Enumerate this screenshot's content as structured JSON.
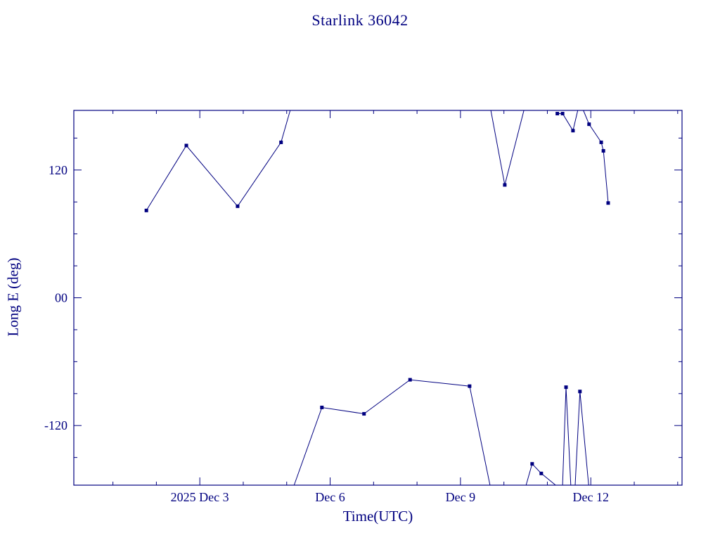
{
  "page": {
    "background": "#ffffff",
    "accent_color": "#000080"
  },
  "chart_data": {
    "type": "line",
    "title": "Starlink 36042",
    "xlabel": "Time(UTC)",
    "ylabel": "Long E (deg)",
    "line_color": "#000080",
    "marker": "filled-square",
    "marker_size": 5,
    "grid": false,
    "legend": "none",
    "x_axis": {
      "unit": "day of December 2025",
      "min": 0.1,
      "max": 14.1,
      "minor_tick_step": 1,
      "major_ticks": [
        {
          "value": 3,
          "label": "2025 Dec 3"
        },
        {
          "value": 6,
          "label": "Dec 6"
        },
        {
          "value": 9,
          "label": "Dec 9"
        },
        {
          "value": 12,
          "label": "Dec 12"
        }
      ]
    },
    "y_axis": {
      "unit": "degrees East longitude",
      "min": -176,
      "max": 176,
      "minor_tick_step": 30,
      "major_ticks": [
        {
          "value": 120,
          "label": "120"
        },
        {
          "value": 0,
          "label": "00"
        },
        {
          "value": -120,
          "label": "-120"
        }
      ]
    },
    "segments": [
      {
        "name": "upper-left",
        "line": [
          [
            1.77,
            82
          ],
          [
            2.69,
            143
          ],
          [
            3.87,
            86
          ],
          [
            4.87,
            146
          ],
          [
            5.08,
            176
          ]
        ],
        "markers": [
          [
            1.77,
            82
          ],
          [
            2.69,
            143
          ],
          [
            3.87,
            86
          ],
          [
            4.87,
            146
          ]
        ]
      },
      {
        "name": "upper-middle-dip",
        "line": [
          [
            9.7,
            176
          ],
          [
            10.02,
            106
          ],
          [
            10.46,
            176
          ]
        ],
        "markers": [
          [
            10.02,
            106
          ]
        ]
      },
      {
        "name": "upper-right-a",
        "line": [
          [
            11.23,
            173
          ],
          [
            11.35,
            173
          ],
          [
            11.59,
            157
          ],
          [
            11.7,
            176
          ]
        ],
        "markers": [
          [
            11.23,
            173
          ],
          [
            11.35,
            173
          ],
          [
            11.59,
            157
          ]
        ]
      },
      {
        "name": "upper-right-b",
        "line": [
          [
            11.83,
            176
          ],
          [
            11.96,
            163
          ],
          [
            12.24,
            146
          ],
          [
            12.29,
            138
          ],
          [
            12.4,
            89
          ]
        ],
        "markers": [
          [
            11.96,
            163
          ],
          [
            12.24,
            146
          ],
          [
            12.29,
            138
          ],
          [
            12.4,
            89
          ]
        ]
      },
      {
        "name": "lower-left-arc",
        "line": [
          [
            5.17,
            -176
          ],
          [
            5.81,
            -103
          ],
          [
            6.78,
            -109
          ],
          [
            7.84,
            -77
          ],
          [
            9.21,
            -83
          ],
          [
            9.68,
            -176
          ]
        ],
        "markers": [
          [
            5.81,
            -103
          ],
          [
            6.78,
            -109
          ],
          [
            7.84,
            -77
          ],
          [
            9.21,
            -83
          ]
        ]
      },
      {
        "name": "lower-right-bump",
        "line": [
          [
            10.51,
            -176
          ],
          [
            10.65,
            -156
          ],
          [
            10.86,
            -165
          ],
          [
            11.19,
            -176
          ]
        ],
        "markers": [
          [
            10.65,
            -156
          ],
          [
            10.86,
            -165
          ]
        ]
      },
      {
        "name": "lower-right-spike-1",
        "line": [
          [
            11.35,
            -176
          ],
          [
            11.43,
            -84
          ],
          [
            11.54,
            -176
          ]
        ],
        "markers": [
          [
            11.43,
            -84
          ]
        ]
      },
      {
        "name": "lower-right-spike-2",
        "line": [
          [
            11.64,
            -176
          ],
          [
            11.75,
            -88
          ],
          [
            11.95,
            -176
          ]
        ],
        "markers": [
          [
            11.75,
            -88
          ]
        ]
      }
    ]
  }
}
